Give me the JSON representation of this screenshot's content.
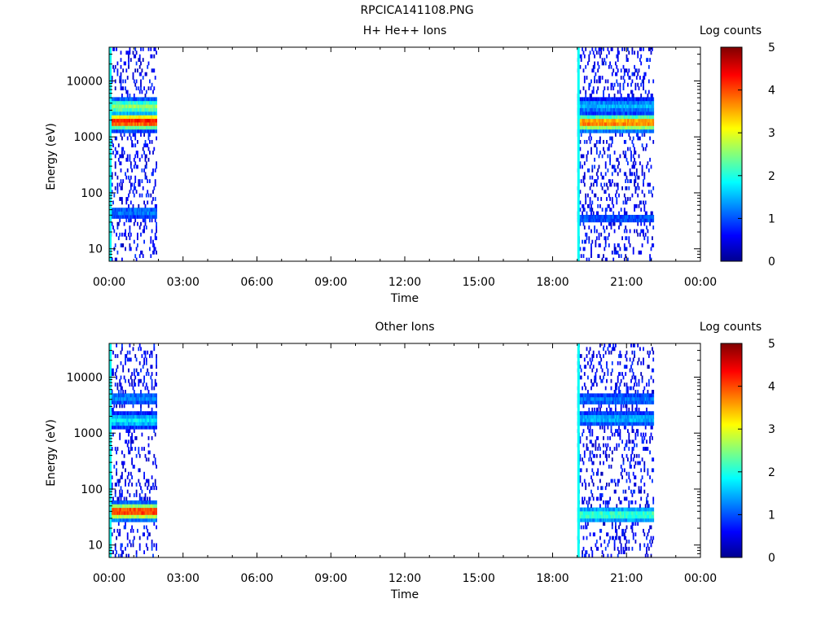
{
  "figure_title": "RPCICA141108.PNG",
  "time_ticks": [
    "00:00",
    "03:00",
    "06:00",
    "09:00",
    "12:00",
    "15:00",
    "18:00",
    "21:00",
    "00:00"
  ],
  "energy_ticks": [
    "10",
    "100",
    "1000",
    "10000"
  ],
  "colorbar": {
    "label": "Log counts",
    "ticks": [
      "0",
      "1",
      "2",
      "3",
      "4",
      "5"
    ],
    "range": [
      0,
      5
    ]
  },
  "chart_data": [
    {
      "type": "heatmap",
      "title": "H+ He++ Ions",
      "xlabel": "Time",
      "ylabel": "Energy (eV)",
      "xlim_hours": [
        0,
        24
      ],
      "ylim_eV": [
        6,
        40000
      ],
      "y_scale": "log",
      "data_intervals_hours": [
        [
          0.0,
          1.9
        ],
        [
          19.0,
          22.1
        ]
      ],
      "bands": [
        {
          "t_start": 0.0,
          "t_end": 1.9,
          "energy_eV": 1900,
          "log_counts": 4.3
        },
        {
          "t_start": 0.0,
          "t_end": 1.9,
          "energy_eV": 3500,
          "log_counts": 2.6
        },
        {
          "t_start": 0.0,
          "t_end": 1.9,
          "energy_eV": 45,
          "log_counts": 1.2
        },
        {
          "t_start": 19.0,
          "t_end": 22.1,
          "energy_eV": 1800,
          "log_counts": 3.8
        },
        {
          "t_start": 19.0,
          "t_end": 22.1,
          "energy_eV": 3600,
          "log_counts": 1.5
        },
        {
          "t_start": 19.0,
          "t_end": 22.1,
          "energy_eV": 35,
          "log_counts": 1.0
        }
      ]
    },
    {
      "type": "heatmap",
      "title": "Other Ions",
      "xlabel": "Time",
      "ylabel": "Energy (eV)",
      "xlim_hours": [
        0,
        24
      ],
      "ylim_eV": [
        6,
        40000
      ],
      "y_scale": "log",
      "data_intervals_hours": [
        [
          0.0,
          1.9
        ],
        [
          19.0,
          22.1
        ]
      ],
      "bands": [
        {
          "t_start": 0.0,
          "t_end": 1.9,
          "energy_eV": 40,
          "log_counts": 4.2
        },
        {
          "t_start": 0.0,
          "t_end": 1.9,
          "energy_eV": 1700,
          "log_counts": 1.8
        },
        {
          "t_start": 0.0,
          "t_end": 1.9,
          "energy_eV": 4200,
          "log_counts": 1.3
        },
        {
          "t_start": 19.0,
          "t_end": 22.1,
          "energy_eV": 35,
          "log_counts": 2.2
        },
        {
          "t_start": 19.0,
          "t_end": 22.1,
          "energy_eV": 1800,
          "log_counts": 1.5
        },
        {
          "t_start": 19.0,
          "t_end": 22.1,
          "energy_eV": 4000,
          "log_counts": 1.2
        }
      ]
    }
  ]
}
